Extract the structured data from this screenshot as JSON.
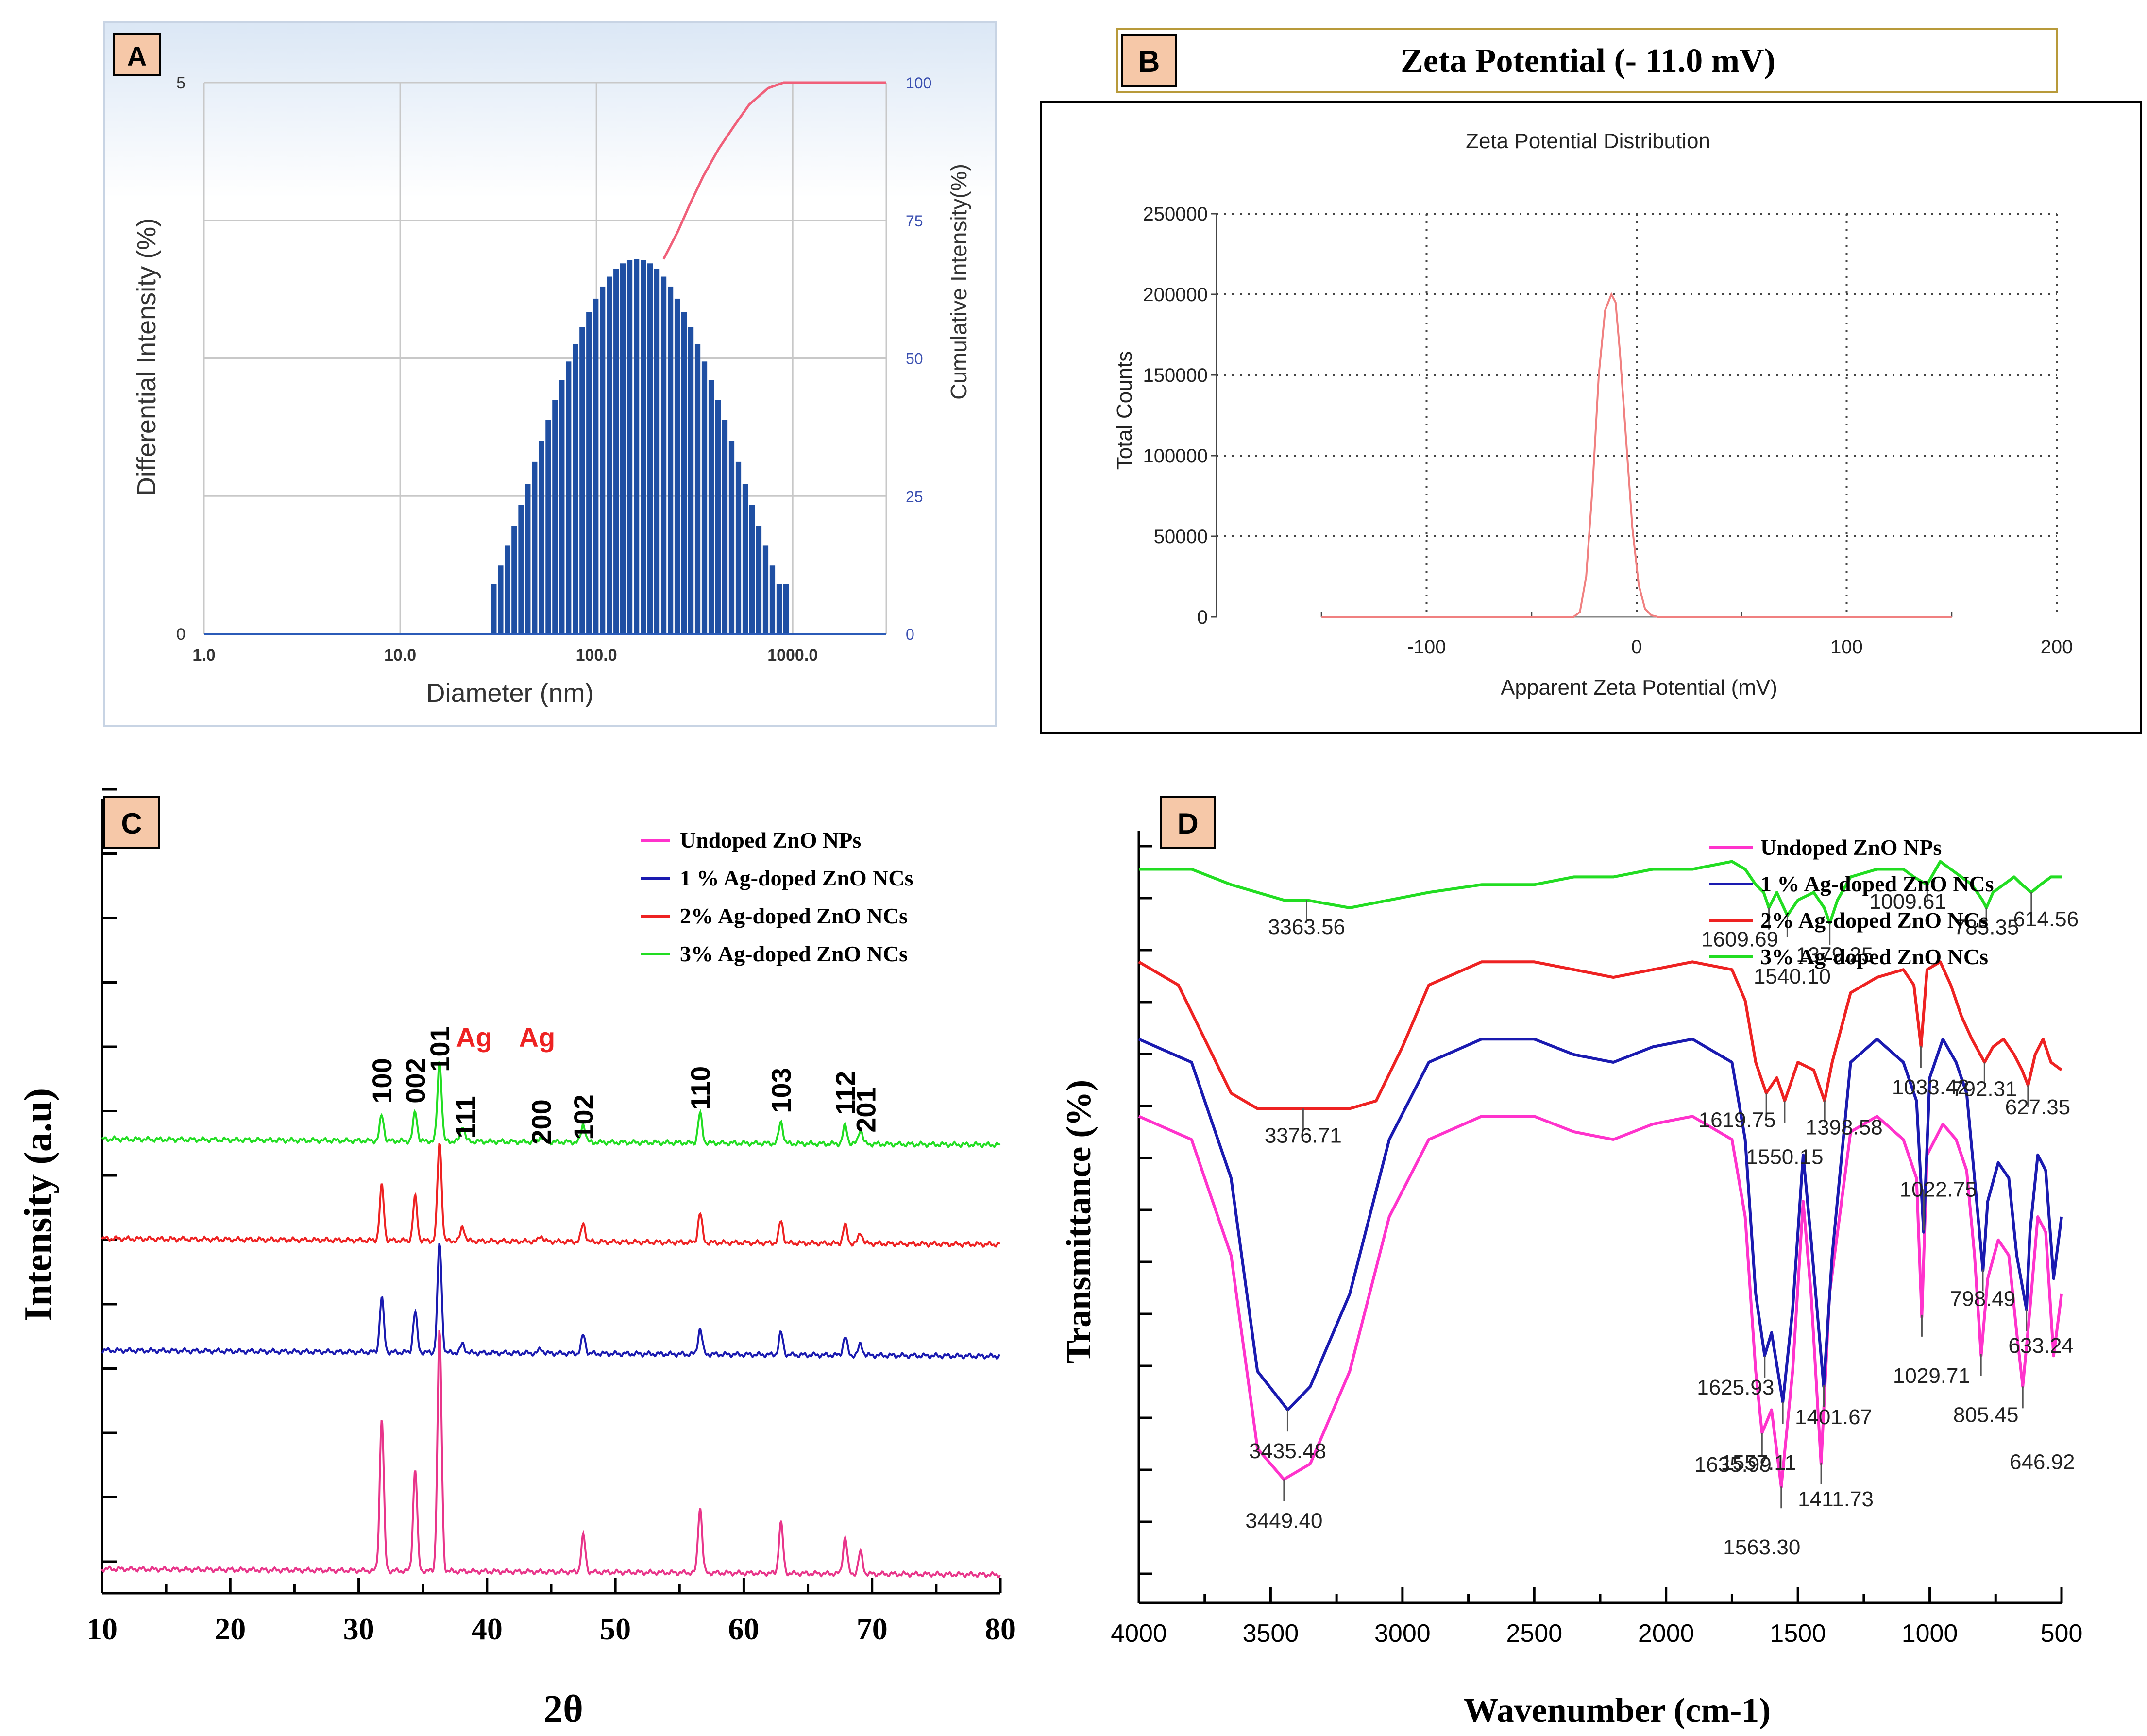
{
  "panels": {
    "A": "A",
    "B": "B",
    "C": "C",
    "D": "D"
  },
  "chart_data": [
    {
      "panel": "A",
      "type": "bar",
      "xlabel": "Diameter (nm)",
      "ylabel": "Differential Intensity (%)",
      "y2label": "Cumulative Intensity(%)",
      "xscale": "log",
      "xlim": [
        1,
        3000
      ],
      "ylim": [
        0,
        5
      ],
      "y2lim": [
        0,
        100
      ],
      "x_ticks": [
        1,
        10,
        100,
        1000
      ],
      "x_tick_labels": [
        "1.0",
        "10.0",
        "100.0",
        "1000.0"
      ],
      "y_ticks": [
        0,
        5
      ],
      "y_tick_labels": [
        "0",
        "5"
      ],
      "y2_ticks": [
        0,
        25,
        50,
        75,
        100
      ],
      "y2_tick_labels": [
        "0",
        "25",
        "50",
        "75",
        "100"
      ],
      "grid": true,
      "bar_color": "#1f4fa3",
      "cumulative_color": "#f0607a",
      "bars": [
        {
          "x": 30,
          "y": 0.45
        },
        {
          "x": 32.5,
          "y": 0.62
        },
        {
          "x": 35.2,
          "y": 0.8
        },
        {
          "x": 38.1,
          "y": 0.98
        },
        {
          "x": 41.3,
          "y": 1.17
        },
        {
          "x": 44.7,
          "y": 1.36
        },
        {
          "x": 48.4,
          "y": 1.56
        },
        {
          "x": 52.4,
          "y": 1.75
        },
        {
          "x": 56.8,
          "y": 1.94
        },
        {
          "x": 61.5,
          "y": 2.12
        },
        {
          "x": 66.6,
          "y": 2.3
        },
        {
          "x": 72.1,
          "y": 2.47
        },
        {
          "x": 78.1,
          "y": 2.63
        },
        {
          "x": 84.6,
          "y": 2.78
        },
        {
          "x": 91.6,
          "y": 2.92
        },
        {
          "x": 99.2,
          "y": 3.04
        },
        {
          "x": 107.4,
          "y": 3.15
        },
        {
          "x": 116.3,
          "y": 3.24
        },
        {
          "x": 126,
          "y": 3.31
        },
        {
          "x": 136.4,
          "y": 3.36
        },
        {
          "x": 147.7,
          "y": 3.39
        },
        {
          "x": 160,
          "y": 3.4
        },
        {
          "x": 173.3,
          "y": 3.39
        },
        {
          "x": 187.7,
          "y": 3.36
        },
        {
          "x": 203.2,
          "y": 3.31
        },
        {
          "x": 220.1,
          "y": 3.24
        },
        {
          "x": 238.4,
          "y": 3.15
        },
        {
          "x": 258.1,
          "y": 3.04
        },
        {
          "x": 279.6,
          "y": 2.92
        },
        {
          "x": 302.8,
          "y": 2.78
        },
        {
          "x": 327.9,
          "y": 2.63
        },
        {
          "x": 355.1,
          "y": 2.47
        },
        {
          "x": 384.6,
          "y": 2.3
        },
        {
          "x": 416.5,
          "y": 2.12
        },
        {
          "x": 451.1,
          "y": 1.94
        },
        {
          "x": 488.5,
          "y": 1.75
        },
        {
          "x": 529.1,
          "y": 1.56
        },
        {
          "x": 573,
          "y": 1.36
        },
        {
          "x": 620.6,
          "y": 1.17
        },
        {
          "x": 672.1,
          "y": 0.98
        },
        {
          "x": 727.9,
          "y": 0.8
        },
        {
          "x": 788.3,
          "y": 0.62
        },
        {
          "x": 853.7,
          "y": 0.45
        },
        {
          "x": 924.6,
          "y": 0.45
        }
      ],
      "cumulative": [
        {
          "x": 220,
          "y": 68
        },
        {
          "x": 260,
          "y": 73
        },
        {
          "x": 300,
          "y": 78
        },
        {
          "x": 350,
          "y": 83
        },
        {
          "x": 420,
          "y": 88
        },
        {
          "x": 500,
          "y": 92
        },
        {
          "x": 600,
          "y": 96
        },
        {
          "x": 750,
          "y": 99
        },
        {
          "x": 900,
          "y": 100
        },
        {
          "x": 3000,
          "y": 100
        }
      ]
    },
    {
      "panel": "B",
      "type": "line",
      "header": "Zeta Potential  (- 11.0 mV)",
      "title": "Zeta Potential Distribution",
      "xlabel": "Apparent Zeta Potential (mV)",
      "ylabel": "Total Counts",
      "xlim": [
        -200,
        200
      ],
      "ylim": [
        0,
        250000
      ],
      "x_ticks": [
        -100,
        0,
        100,
        200
      ],
      "y_ticks": [
        0,
        50000,
        100000,
        150000,
        200000,
        250000
      ],
      "grid": "dotted",
      "line_color": "#f08080",
      "series": [
        {
          "x": [
            -150,
            -30,
            -27,
            -24,
            -21,
            -18,
            -15,
            -12,
            -10,
            -8,
            -5,
            -2,
            1,
            4,
            7,
            10,
            150
          ],
          "y": [
            0,
            0,
            3000,
            25000,
            80000,
            150000,
            190000,
            200000,
            195000,
            165000,
            110000,
            55000,
            20000,
            5000,
            1000,
            0,
            0
          ]
        }
      ]
    },
    {
      "panel": "C",
      "type": "line",
      "xlabel": "2θ",
      "ylabel": "Intensity (a.u)",
      "xlim": [
        10,
        80
      ],
      "x_ticks": [
        10,
        20,
        30,
        40,
        50,
        60,
        70,
        80
      ],
      "legend_position": "top-right",
      "series": [
        {
          "name": "Undoped ZnO NPs",
          "color": "#ff33cc"
        },
        {
          "name": "1 % Ag-doped ZnO NCs",
          "color": "#1a1ab0"
        },
        {
          "name": "2% Ag-doped ZnO NCs",
          "color": "#ee2222"
        },
        {
          "name": "3% Ag-doped ZnO NCs",
          "color": "#22dd22"
        }
      ],
      "trace_colors": [
        "#e8358a",
        "#1a1ab0",
        "#ee2222",
        "#22dd22"
      ],
      "peak_positions": [
        31.8,
        34.4,
        36.3,
        38.1,
        44.2,
        47.5,
        56.6,
        62.9,
        67.9,
        69.1
      ],
      "peak_heights": [
        [
          2.1,
          1.4,
          3.3,
          0,
          0,
          0.5,
          0.9,
          0.7,
          0.5,
          0.3
        ],
        [
          0.75,
          0.55,
          1.5,
          0.12,
          0.06,
          0.25,
          0.35,
          0.3,
          0.25,
          0.15
        ],
        [
          0.75,
          0.6,
          1.35,
          0.2,
          0.08,
          0.25,
          0.4,
          0.3,
          0.25,
          0.15
        ],
        [
          0.35,
          0.4,
          1.1,
          0.22,
          0.08,
          0.25,
          0.4,
          0.3,
          0.25,
          0.2
        ]
      ],
      "peak_labels": [
        {
          "text": "100",
          "x": 31.8,
          "color": "#000000"
        },
        {
          "text": "002",
          "x": 34.4,
          "color": "#000000"
        },
        {
          "text": "101",
          "x": 36.3,
          "color": "#000000"
        },
        {
          "text": "Ag",
          "x": 39.0,
          "color": "#ee2222"
        },
        {
          "text": "111",
          "x": 38.3,
          "color": "#000000"
        },
        {
          "text": "Ag",
          "x": 43.9,
          "color": "#ee2222"
        },
        {
          "text": "200",
          "x": 44.2,
          "color": "#000000"
        },
        {
          "text": "102",
          "x": 47.5,
          "color": "#000000"
        },
        {
          "text": "110",
          "x": 56.6,
          "color": "#000000"
        },
        {
          "text": "103",
          "x": 62.9,
          "color": "#000000"
        },
        {
          "text": "112",
          "x": 67.9,
          "color": "#000000"
        },
        {
          "text": "201",
          "x": 69.5,
          "color": "#000000"
        }
      ]
    },
    {
      "panel": "D",
      "type": "line",
      "xlabel": "Wavenumber (cm-1)",
      "ylabel": "Transmittance (%)",
      "xlim": [
        4000,
        500
      ],
      "x_ticks": [
        4000,
        3500,
        3000,
        2500,
        2000,
        1500,
        1000,
        500
      ],
      "legend_position": "top-right",
      "series": [
        {
          "name": "Undoped ZnO NPs",
          "color": "#ff33cc",
          "x": [
            4000,
            3800,
            3650,
            3550,
            3450,
            3350,
            3200,
            3050,
            2900,
            2700,
            2500,
            2350,
            2200,
            2050,
            1900,
            1750,
            1700,
            1660,
            1636,
            1600,
            1563,
            1520,
            1480,
            1450,
            1412,
            1380,
            1300,
            1200,
            1100,
            1050,
            1030,
            1010,
            950,
            900,
            860,
            830,
            805,
            780,
            740,
            700,
            670,
            647,
            620,
            590,
            560,
            530,
            500
          ],
          "y": [
            0.63,
            0.6,
            0.45,
            0.2,
            0.16,
            0.18,
            0.3,
            0.5,
            0.6,
            0.63,
            0.63,
            0.61,
            0.6,
            0.62,
            0.63,
            0.6,
            0.5,
            0.3,
            0.22,
            0.25,
            0.15,
            0.3,
            0.52,
            0.4,
            0.18,
            0.4,
            0.61,
            0.63,
            0.6,
            0.55,
            0.37,
            0.58,
            0.62,
            0.6,
            0.56,
            0.45,
            0.32,
            0.42,
            0.47,
            0.45,
            0.35,
            0.28,
            0.38,
            0.5,
            0.48,
            0.32,
            0.4
          ]
        },
        {
          "name": "1 % Ag-doped ZnO NCs",
          "color": "#1a1ab0",
          "x": [
            4000,
            3800,
            3650,
            3550,
            3435,
            3350,
            3200,
            3050,
            2900,
            2700,
            2500,
            2350,
            2200,
            2050,
            1900,
            1750,
            1700,
            1660,
            1626,
            1600,
            1557,
            1520,
            1480,
            1450,
            1402,
            1370,
            1300,
            1200,
            1100,
            1050,
            1023,
            1000,
            950,
            900,
            860,
            830,
            798,
            780,
            740,
            700,
            670,
            633,
            620,
            590,
            560,
            530,
            500
          ],
          "y": [
            0.73,
            0.7,
            0.55,
            0.3,
            0.25,
            0.28,
            0.4,
            0.6,
            0.7,
            0.73,
            0.73,
            0.71,
            0.7,
            0.72,
            0.73,
            0.7,
            0.6,
            0.4,
            0.32,
            0.35,
            0.26,
            0.38,
            0.58,
            0.47,
            0.28,
            0.45,
            0.7,
            0.73,
            0.7,
            0.65,
            0.48,
            0.68,
            0.73,
            0.7,
            0.66,
            0.55,
            0.43,
            0.52,
            0.57,
            0.55,
            0.45,
            0.38,
            0.48,
            0.58,
            0.56,
            0.42,
            0.5
          ]
        },
        {
          "name": "2% Ag-doped ZnO NCs",
          "color": "#ee2222",
          "x": [
            4000,
            3850,
            3750,
            3650,
            3550,
            3377,
            3200,
            3100,
            3000,
            2900,
            2700,
            2500,
            2350,
            2200,
            2050,
            1900,
            1750,
            1700,
            1660,
            1620,
            1580,
            1550,
            1500,
            1440,
            1399,
            1370,
            1300,
            1200,
            1100,
            1060,
            1033,
            1010,
            960,
            920,
            880,
            840,
            792,
            760,
            720,
            680,
            650,
            627,
            600,
            570,
            540,
            500
          ],
          "y": [
            0.83,
            0.8,
            0.73,
            0.66,
            0.64,
            0.64,
            0.64,
            0.65,
            0.72,
            0.8,
            0.83,
            0.83,
            0.82,
            0.81,
            0.82,
            0.83,
            0.82,
            0.78,
            0.7,
            0.66,
            0.68,
            0.65,
            0.7,
            0.69,
            0.65,
            0.7,
            0.79,
            0.81,
            0.82,
            0.8,
            0.72,
            0.82,
            0.83,
            0.8,
            0.76,
            0.73,
            0.7,
            0.72,
            0.73,
            0.71,
            0.69,
            0.67,
            0.71,
            0.73,
            0.7,
            0.69
          ]
        },
        {
          "name": "3% Ag-doped ZnO NCs",
          "color": "#22dd22",
          "x": [
            4000,
            3800,
            3650,
            3550,
            3450,
            3364,
            3200,
            3050,
            2900,
            2700,
            2500,
            2350,
            2200,
            2050,
            1900,
            1750,
            1700,
            1660,
            1630,
            1610,
            1580,
            1540,
            1500,
            1440,
            1400,
            1379,
            1350,
            1300,
            1200,
            1100,
            1060,
            1010,
            960,
            920,
            880,
            840,
            800,
            785,
            760,
            720,
            680,
            650,
            615,
            580,
            540,
            500
          ],
          "y": [
            0.95,
            0.95,
            0.93,
            0.92,
            0.91,
            0.91,
            0.9,
            0.91,
            0.92,
            0.93,
            0.93,
            0.94,
            0.94,
            0.95,
            0.95,
            0.96,
            0.95,
            0.93,
            0.92,
            0.9,
            0.92,
            0.89,
            0.91,
            0.92,
            0.9,
            0.88,
            0.91,
            0.94,
            0.95,
            0.95,
            0.94,
            0.93,
            0.96,
            0.95,
            0.94,
            0.93,
            0.91,
            0.9,
            0.92,
            0.93,
            0.94,
            0.93,
            0.92,
            0.93,
            0.94,
            0.94
          ]
        }
      ],
      "annotations": [
        {
          "text": "3363.56",
          "x": 3363.56,
          "series": 3
        },
        {
          "text": "1609.69",
          "x": 1609.69,
          "series": 3
        },
        {
          "text": "1540.10",
          "x": 1540.1,
          "series": 3
        },
        {
          "text": "1379.25",
          "x": 1379.25,
          "series": 3
        },
        {
          "text": "1009.61",
          "x": 1009.61,
          "series": 3
        },
        {
          "text": "785.35",
          "x": 785.35,
          "series": 3
        },
        {
          "text": "614.56",
          "x": 614.56,
          "series": 3
        },
        {
          "text": "3376.71",
          "x": 3376.71,
          "series": 2
        },
        {
          "text": "1619.75",
          "x": 1619.75,
          "series": 2
        },
        {
          "text": "1550.15",
          "x": 1550.15,
          "series": 2
        },
        {
          "text": "1398.58",
          "x": 1398.58,
          "series": 2
        },
        {
          "text": "1033.42",
          "x": 1033.42,
          "series": 2
        },
        {
          "text": "792.31",
          "x": 792.31,
          "series": 2
        },
        {
          "text": "627.35",
          "x": 627.35,
          "series": 2
        },
        {
          "text": "3435.48",
          "x": 3435.48,
          "series": 1
        },
        {
          "text": "1625.93",
          "x": 1625.93,
          "series": 1
        },
        {
          "text": "1557.11",
          "x": 1557.11,
          "series": 1
        },
        {
          "text": "1401.67",
          "x": 1401.67,
          "series": 1
        },
        {
          "text": "1022.75",
          "x": 1022.75,
          "series": 1
        },
        {
          "text": "798.49",
          "x": 798.49,
          "series": 1
        },
        {
          "text": "633.24",
          "x": 633.24,
          "series": 1
        },
        {
          "text": "3449.40",
          "x": 3449.4,
          "series": 0
        },
        {
          "text": "1635.99",
          "x": 1635.99,
          "series": 0
        },
        {
          "text": "1563.30",
          "x": 1563.3,
          "series": 0
        },
        {
          "text": "1411.73",
          "x": 1411.73,
          "series": 0
        },
        {
          "text": "1029.71",
          "x": 1029.71,
          "series": 0
        },
        {
          "text": "805.45",
          "x": 805.45,
          "series": 0
        },
        {
          "text": "646.92",
          "x": 646.92,
          "series": 0
        }
      ]
    }
  ]
}
